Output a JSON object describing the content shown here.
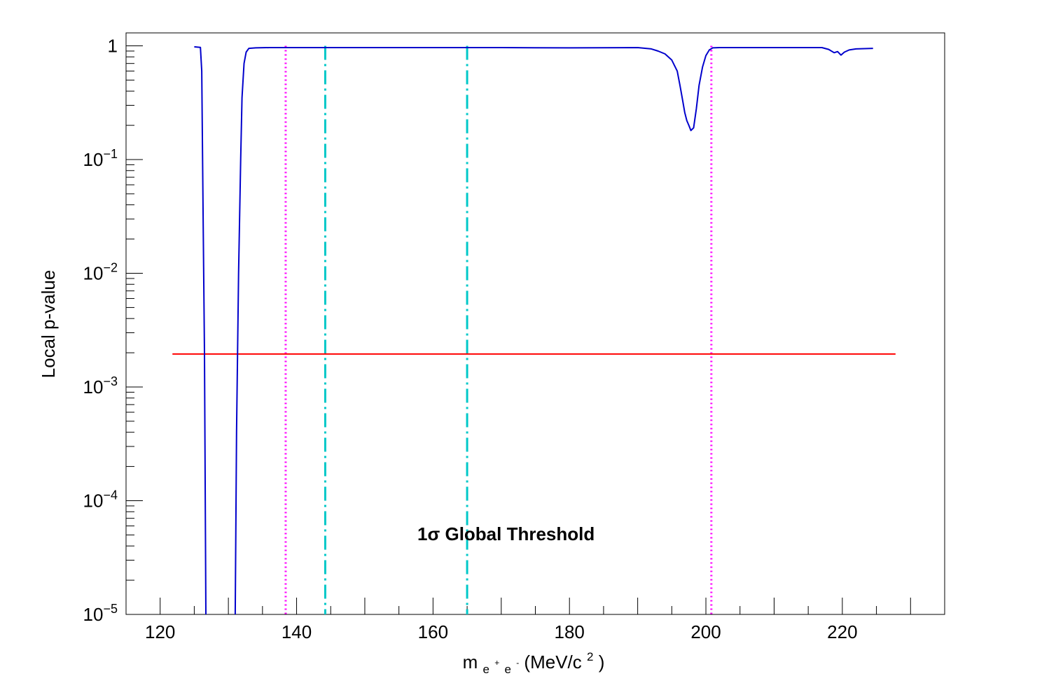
{
  "chart_data": {
    "type": "line",
    "title": "",
    "xlabel": {
      "base": "m",
      "sub_parts": [
        {
          "text": "e",
          "sup": "+"
        },
        {
          "text": "e",
          "sup": "-"
        }
      ],
      "unit_open": " (MeV/c",
      "unit_sup": "2",
      "unit_close": ")"
    },
    "ylabel": "Local p-value",
    "xlim": [
      115,
      235
    ],
    "ylim": [
      1e-05,
      1.3
    ],
    "yscale": "log",
    "grid": false,
    "x_major_ticks": [
      120,
      130,
      140,
      150,
      160,
      170,
      180,
      190,
      200,
      210,
      220,
      230
    ],
    "x_tick_labels": [
      {
        "value": 120,
        "label": "120"
      },
      {
        "value": 140,
        "label": "140"
      },
      {
        "value": 160,
        "label": "160"
      },
      {
        "value": 180,
        "label": "180"
      },
      {
        "value": 200,
        "label": "200"
      },
      {
        "value": 220,
        "label": "220"
      }
    ],
    "y_tick_labels": [
      {
        "value": 1,
        "mantissa": "1",
        "exponent": ""
      },
      {
        "value": 0.1,
        "mantissa": "10",
        "exponent": "−1"
      },
      {
        "value": 0.01,
        "mantissa": "10",
        "exponent": "−2"
      },
      {
        "value": 0.001,
        "mantissa": "10",
        "exponent": "−3"
      },
      {
        "value": 0.0001,
        "mantissa": "10",
        "exponent": "−4"
      },
      {
        "value": 1e-05,
        "mantissa": "10",
        "exponent": "−5"
      }
    ],
    "series": [
      {
        "color": "#0000cc",
        "segments": [
          {
            "x": [
              125.0,
              125.9,
              126.1,
              126.3,
              126.5,
              126.7
            ],
            "y": [
              0.98,
              0.97,
              0.6,
              0.03,
              0.002,
              1e-05
            ]
          },
          {
            "x": [
              131.0,
              131.2,
              131.5,
              131.8,
              132.0,
              132.3,
              132.6,
              133.0,
              134.0,
              136.0,
              138.0,
              140.0,
              150.0,
              160.0,
              170.0,
              180.0,
              190.0,
              192.0,
              193.0,
              194.0,
              195.0,
              195.8,
              196.2,
              196.6,
              196.9,
              197.2,
              197.5,
              197.8,
              198.2,
              198.6,
              199.0,
              199.5,
              200.0,
              200.5,
              201.0,
              202.0,
              210.0,
              217.0,
              218.0,
              218.8,
              219.3,
              219.8,
              220.3,
              221.0,
              222.0,
              224.5
            ],
            "y": [
              1e-05,
              0.0004,
              0.01,
              0.1,
              0.35,
              0.7,
              0.88,
              0.95,
              0.96,
              0.965,
              0.965,
              0.965,
              0.965,
              0.965,
              0.965,
              0.96,
              0.965,
              0.94,
              0.9,
              0.85,
              0.75,
              0.6,
              0.45,
              0.33,
              0.26,
              0.22,
              0.2,
              0.18,
              0.19,
              0.28,
              0.45,
              0.65,
              0.82,
              0.92,
              0.96,
              0.965,
              0.965,
              0.965,
              0.93,
              0.87,
              0.89,
              0.83,
              0.88,
              0.92,
              0.94,
              0.95
            ]
          }
        ]
      }
    ],
    "threshold_line": {
      "y": 0.00195,
      "x_start": 121.8,
      "x_end": 227.8,
      "color": "#ff0000"
    },
    "vertical_lines": [
      {
        "x": 138.4,
        "style": "dotted",
        "color": "#ff00ff"
      },
      {
        "x": 144.2,
        "style": "dashdot",
        "color": "#00c8c8"
      },
      {
        "x": 165.0,
        "style": "dashdot",
        "color": "#00c8c8"
      },
      {
        "x": 200.8,
        "style": "dotted",
        "color": "#ff00ff"
      }
    ],
    "annotation": {
      "text": "1σ Global Threshold"
    }
  }
}
